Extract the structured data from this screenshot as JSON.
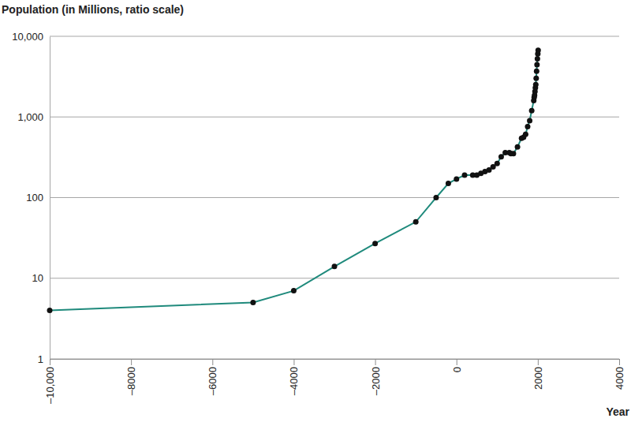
{
  "chart_data": {
    "type": "line",
    "title": "Population (in Millions, ratio scale)",
    "x_label": "Year",
    "x": [
      -10000,
      -5000,
      -4000,
      -3000,
      -2000,
      -1000,
      -500,
      -200,
      1,
      200,
      400,
      500,
      600,
      700,
      800,
      900,
      1000,
      1100,
      1200,
      1300,
      1340,
      1400,
      1500,
      1600,
      1650,
      1700,
      1750,
      1800,
      1850,
      1900,
      1910,
      1920,
      1930,
      1940,
      1950,
      1960,
      1970,
      1980,
      1990,
      2000,
      2008
    ],
    "values": [
      4,
      5,
      7,
      14,
      27,
      50,
      100,
      150,
      170,
      190,
      190,
      190,
      200,
      210,
      220,
      240,
      265,
      320,
      360,
      360,
      350,
      350,
      425,
      545,
      560,
      610,
      760,
      900,
      1200,
      1600,
      1750,
      1860,
      2070,
      2300,
      2520,
      3020,
      3700,
      4440,
      5270,
      6070,
      6700
    ],
    "color": "#1f8a7c",
    "marker": "circle",
    "log": "y",
    "grid": true,
    "xlim": [
      -10000,
      4000
    ],
    "xticks": [
      {
        "value": -10000,
        "label": "–10,000"
      },
      {
        "value": -8000,
        "label": "–8000"
      },
      {
        "value": -6000,
        "label": "–6000"
      },
      {
        "value": -4000,
        "label": "–4000"
      },
      {
        "value": -2000,
        "label": "–2000"
      },
      0,
      2000,
      4000
    ],
    "ylim": [
      1,
      10000
    ],
    "yticks": [
      1,
      10,
      100,
      {
        "value": 1000,
        "label": "1,000"
      },
      {
        "value": 10000,
        "label": "10,000"
      }
    ]
  }
}
